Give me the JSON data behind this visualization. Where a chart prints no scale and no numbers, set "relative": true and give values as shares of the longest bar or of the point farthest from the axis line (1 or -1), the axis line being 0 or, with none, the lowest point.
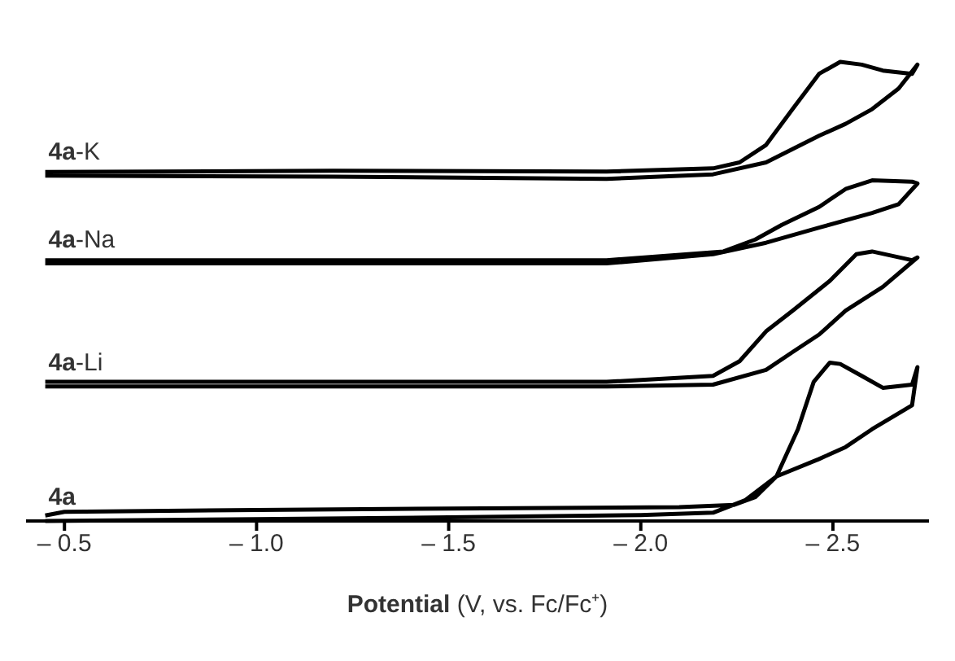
{
  "chart_data": {
    "type": "line",
    "xlabel": "Potential (V, vs. Fc/Fc⁺)",
    "relative": true,
    "marker": "none",
    "line_style": "solid",
    "xlim": [
      -0.4,
      -2.75
    ],
    "xticks": [
      {
        "value": -0.5,
        "label": "– 0.5"
      },
      {
        "value": -1.0,
        "label": "– 1.0"
      },
      {
        "value": -1.5,
        "label": "– 1.5"
      },
      {
        "value": -2.0,
        "label": "– 2.0"
      },
      {
        "value": -2.5,
        "label": "– 2.5"
      }
    ],
    "series": [
      {
        "name": "4a-K",
        "color": "#000000",
        "x": [
          -0.45,
          -1.2,
          -1.911,
          -2.188,
          -2.326,
          -2.464,
          -2.533,
          -2.602,
          -2.671,
          -2.72,
          -2.706,
          -2.63,
          -2.575,
          -2.519,
          -2.464,
          -2.395,
          -2.326,
          -2.257,
          -2.188,
          -1.911,
          -1.2,
          -0.45
        ],
        "values": [
          0.752,
          0.75,
          0.745,
          0.755,
          0.781,
          0.839,
          0.865,
          0.897,
          0.942,
          0.994,
          0.974,
          0.981,
          0.994,
          1.0,
          0.974,
          0.897,
          0.819,
          0.781,
          0.768,
          0.761,
          0.763,
          0.76
        ]
      },
      {
        "name": "4a-Na",
        "color": "#000000",
        "x": [
          -0.45,
          -1.911,
          -2.188,
          -2.326,
          -2.464,
          -2.602,
          -2.671,
          -2.72,
          -2.706,
          -2.602,
          -2.533,
          -2.464,
          -2.367,
          -2.298,
          -2.215,
          -1.911,
          -0.45
        ],
        "values": [
          0.561,
          0.561,
          0.581,
          0.606,
          0.639,
          0.671,
          0.69,
          0.735,
          0.739,
          0.742,
          0.723,
          0.684,
          0.645,
          0.613,
          0.587,
          0.568,
          0.568
        ]
      },
      {
        "name": "4a-Li",
        "color": "#000000",
        "x": [
          -0.45,
          -1.911,
          -2.188,
          -2.326,
          -2.395,
          -2.464,
          -2.533,
          -2.63,
          -2.72,
          -2.706,
          -2.602,
          -2.561,
          -2.492,
          -2.395,
          -2.326,
          -2.257,
          -2.188,
          -1.911,
          -0.45
        ],
        "values": [
          0.293,
          0.293,
          0.297,
          0.329,
          0.368,
          0.406,
          0.458,
          0.51,
          0.574,
          0.568,
          0.587,
          0.581,
          0.523,
          0.458,
          0.413,
          0.348,
          0.316,
          0.303,
          0.303
        ]
      },
      {
        "name": "4a",
        "color": "#000000",
        "x": [
          -0.45,
          -1.0,
          -1.5,
          -2.0,
          -2.188,
          -2.271,
          -2.353,
          -2.464,
          -2.533,
          -2.602,
          -2.706,
          -2.72,
          -2.706,
          -2.63,
          -2.575,
          -2.519,
          -2.492,
          -2.45,
          -2.409,
          -2.353,
          -2.298,
          -2.243,
          -2.1,
          -1.5,
          -1.0,
          -0.5,
          -0.45
        ],
        "values": [
          0.0,
          0.004,
          0.008,
          0.013,
          0.018,
          0.045,
          0.097,
          0.135,
          0.161,
          0.2,
          0.252,
          0.335,
          0.297,
          0.29,
          0.316,
          0.342,
          0.345,
          0.303,
          0.2,
          0.097,
          0.052,
          0.035,
          0.03,
          0.027,
          0.024,
          0.02,
          0.012
        ]
      }
    ]
  }
}
